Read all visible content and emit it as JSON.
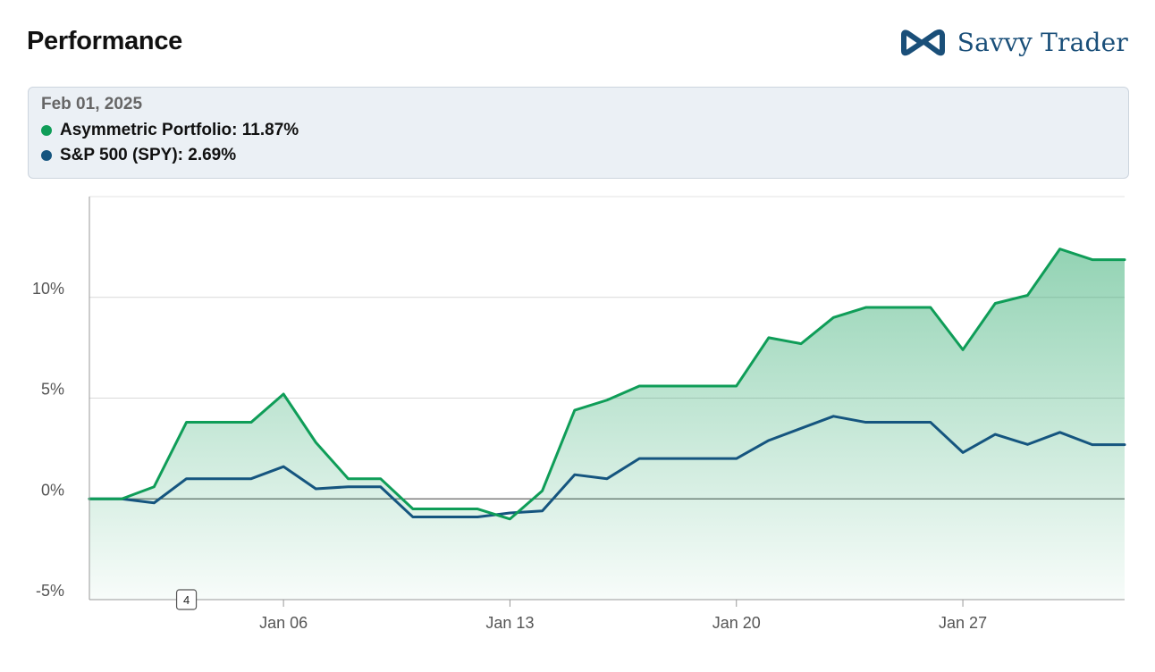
{
  "header": {
    "title": "Performance",
    "brand_name": "Savvy Trader"
  },
  "tooltip": {
    "date": "Feb 01, 2025",
    "rows": [
      {
        "label": "Asymmetric Portfolio",
        "value": "11.87%",
        "color": "#0f9d58"
      },
      {
        "label": "S&P 500 (SPY)",
        "value": "2.69%",
        "color": "#15557f"
      }
    ]
  },
  "marker_badge": "4",
  "colors": {
    "portfolio": "#0f9d58",
    "spy": "#15557f",
    "brand": "#1a4f79"
  },
  "chart_data": {
    "type": "area",
    "x": [
      "Dec 31",
      "Jan 01",
      "Jan 02",
      "Jan 03",
      "Jan 04",
      "Jan 05",
      "Jan 06",
      "Jan 07",
      "Jan 08",
      "Jan 09",
      "Jan 10",
      "Jan 11",
      "Jan 12",
      "Jan 13",
      "Jan 14",
      "Jan 15",
      "Jan 16",
      "Jan 17",
      "Jan 18",
      "Jan 19",
      "Jan 20",
      "Jan 21",
      "Jan 22",
      "Jan 23",
      "Jan 24",
      "Jan 25",
      "Jan 26",
      "Jan 27",
      "Jan 28",
      "Jan 29",
      "Jan 30",
      "Jan 31",
      "Feb 01"
    ],
    "x_ticks": [
      "Jan 06",
      "Jan 13",
      "Jan 20",
      "Jan 27"
    ],
    "y_ticks": [
      "-5%",
      "0%",
      "5%",
      "10%"
    ],
    "ylim": [
      -5,
      15
    ],
    "grid": true,
    "series": [
      {
        "name": "Asymmetric Portfolio",
        "values": [
          0.0,
          0.0,
          0.6,
          3.8,
          3.8,
          3.8,
          5.2,
          2.8,
          1.0,
          1.0,
          -0.5,
          -0.5,
          -0.5,
          -1.0,
          0.4,
          4.4,
          4.9,
          5.6,
          5.6,
          5.6,
          5.6,
          8.0,
          7.7,
          9.0,
          9.5,
          9.5,
          9.5,
          7.4,
          9.7,
          10.1,
          12.4,
          11.87,
          11.87
        ]
      },
      {
        "name": "S&P 500 (SPY)",
        "values": [
          0.0,
          0.0,
          -0.2,
          1.0,
          1.0,
          1.0,
          1.6,
          0.5,
          0.6,
          0.6,
          -0.9,
          -0.9,
          -0.9,
          -0.7,
          -0.6,
          1.2,
          1.0,
          2.0,
          2.0,
          2.0,
          2.0,
          2.9,
          3.5,
          4.1,
          3.8,
          3.8,
          3.8,
          2.3,
          3.2,
          2.7,
          3.3,
          2.69,
          2.69
        ]
      }
    ]
  }
}
